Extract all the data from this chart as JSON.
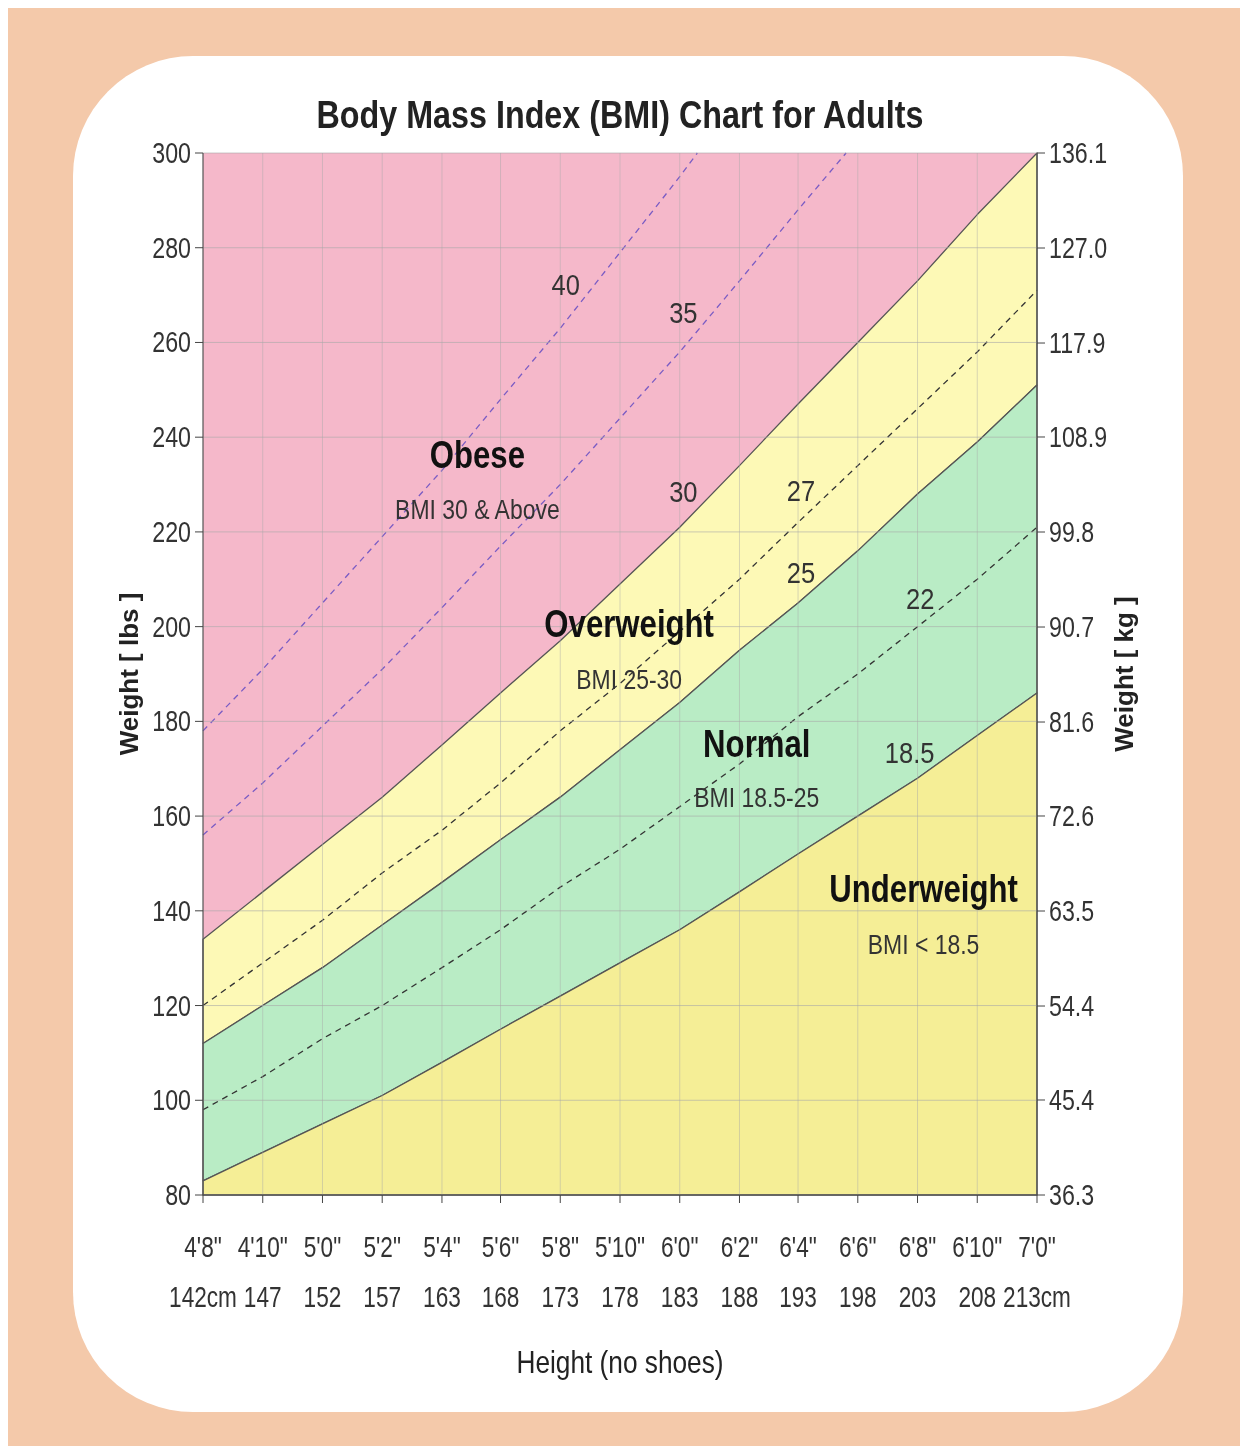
{
  "chart_data": {
    "type": "line",
    "title": "Body Mass Index (BMI) Chart for Adults",
    "xlabel": "Height (no shoes)",
    "ylabel": "Weight [ lbs ]",
    "y2label": "Weight [ kg ]",
    "x": [
      142.2,
      147.3,
      152.4,
      157.5,
      162.6,
      167.6,
      172.7,
      177.8,
      182.9,
      188.0,
      193.0,
      198.1,
      203.2,
      208.3,
      213.4
    ],
    "xlim": [
      142.2,
      213.4
    ],
    "xticks": [
      {
        "value": 142.2,
        "label": "142cm"
      },
      {
        "value": 147.3,
        "label": "147"
      },
      {
        "value": 152.4,
        "label": "152"
      },
      {
        "value": 157.5,
        "label": "157"
      },
      {
        "value": 162.6,
        "label": "163"
      },
      {
        "value": 167.6,
        "label": "168"
      },
      {
        "value": 172.7,
        "label": "173"
      },
      {
        "value": 177.8,
        "label": "178"
      },
      {
        "value": 182.9,
        "label": "183"
      },
      {
        "value": 188.0,
        "label": "188"
      },
      {
        "value": 193.0,
        "label": "193"
      },
      {
        "value": 198.1,
        "label": "198"
      },
      {
        "value": 203.2,
        "label": "203"
      },
      {
        "value": 208.3,
        "label": "208"
      },
      {
        "value": 213.4,
        "label": "213cm"
      }
    ],
    "ylim": [
      80,
      300
    ],
    "yticks": [
      80,
      100,
      120,
      140,
      160,
      180,
      200,
      220,
      240,
      260,
      280,
      300
    ],
    "y2lim": [
      36.3,
      136.1
    ],
    "y2ticks": [
      36.3,
      45.4,
      54.4,
      63.5,
      72.6,
      81.6,
      90.7,
      99.8,
      108.9,
      117.9,
      {
        "value": 127,
        "label": "127.0"
      },
      136.1
    ],
    "grid": true,
    "bands": [
      {
        "axis": "y",
        "from": 80,
        "to": 300,
        "color": "#f5b8ca"
      }
    ],
    "series": [
      {
        "name": "30",
        "type": "area",
        "line_style": "solid",
        "color": "#fdf9b6",
        "values": [
          134,
          144,
          154,
          164,
          175,
          186,
          197,
          209,
          221,
          234,
          247,
          260,
          273,
          287,
          300
        ]
      },
      {
        "name": "25",
        "type": "area",
        "line_style": "solid",
        "color": "#b9ecc5",
        "values": [
          112,
          120,
          128,
          137,
          146,
          155,
          164,
          174,
          184,
          195,
          205,
          216,
          228,
          239,
          251
        ]
      },
      {
        "name": "18.5",
        "type": "area",
        "line_style": "solid",
        "color": "#f5ee96",
        "values": [
          83,
          89,
          95,
          101,
          108,
          115,
          122,
          129,
          136,
          144,
          152,
          160,
          168,
          177,
          186
        ]
      },
      {
        "name": "40",
        "line_style": "dashed",
        "color": "#7a5cc4",
        "x": [
          142.2,
          147.3,
          152.4,
          157.5,
          162.6,
          167.6,
          172.7,
          177.8,
          182.9,
          184.4
        ],
        "values": [
          178,
          191,
          205,
          219,
          233,
          248,
          263,
          279,
          295,
          300
        ]
      },
      {
        "name": "35",
        "line_style": "dashed",
        "color": "#7a5cc4",
        "x": [
          142.2,
          147.3,
          152.4,
          157.5,
          162.6,
          167.6,
          172.7,
          177.8,
          182.9,
          188.0,
          193.0,
          197.1
        ],
        "values": [
          156,
          167,
          179,
          191,
          204,
          217,
          230,
          244,
          258,
          273,
          288,
          300
        ]
      },
      {
        "name": "27",
        "line_style": "dashed",
        "color": "#333333",
        "values": [
          120,
          129,
          138,
          148,
          157,
          167,
          178,
          188,
          199,
          210,
          222,
          234,
          246,
          258,
          271
        ]
      },
      {
        "name": "22",
        "line_style": "dashed",
        "color": "#333333",
        "values": [
          98,
          105,
          113,
          120,
          128,
          136,
          145,
          153,
          162,
          171,
          181,
          190,
          200,
          210,
          221
        ]
      }
    ],
    "annotations": [
      "Obese",
      "BMI 30 & Above",
      "Overweight",
      "BMI 25-30",
      "Normal",
      "BMI 18.5-25",
      "Underweight",
      "BMI < 18.5",
      "4'8\"",
      "4'10\"",
      "5'0\"",
      "5'2\"",
      "5'4\"",
      "5'6\"",
      "5'8\"",
      "5'10\"",
      "6'0\"",
      "6'2\"",
      "6'4\"",
      "6'6\"",
      "6'8\"",
      "6'10\"",
      "7'0\""
    ]
  }
}
